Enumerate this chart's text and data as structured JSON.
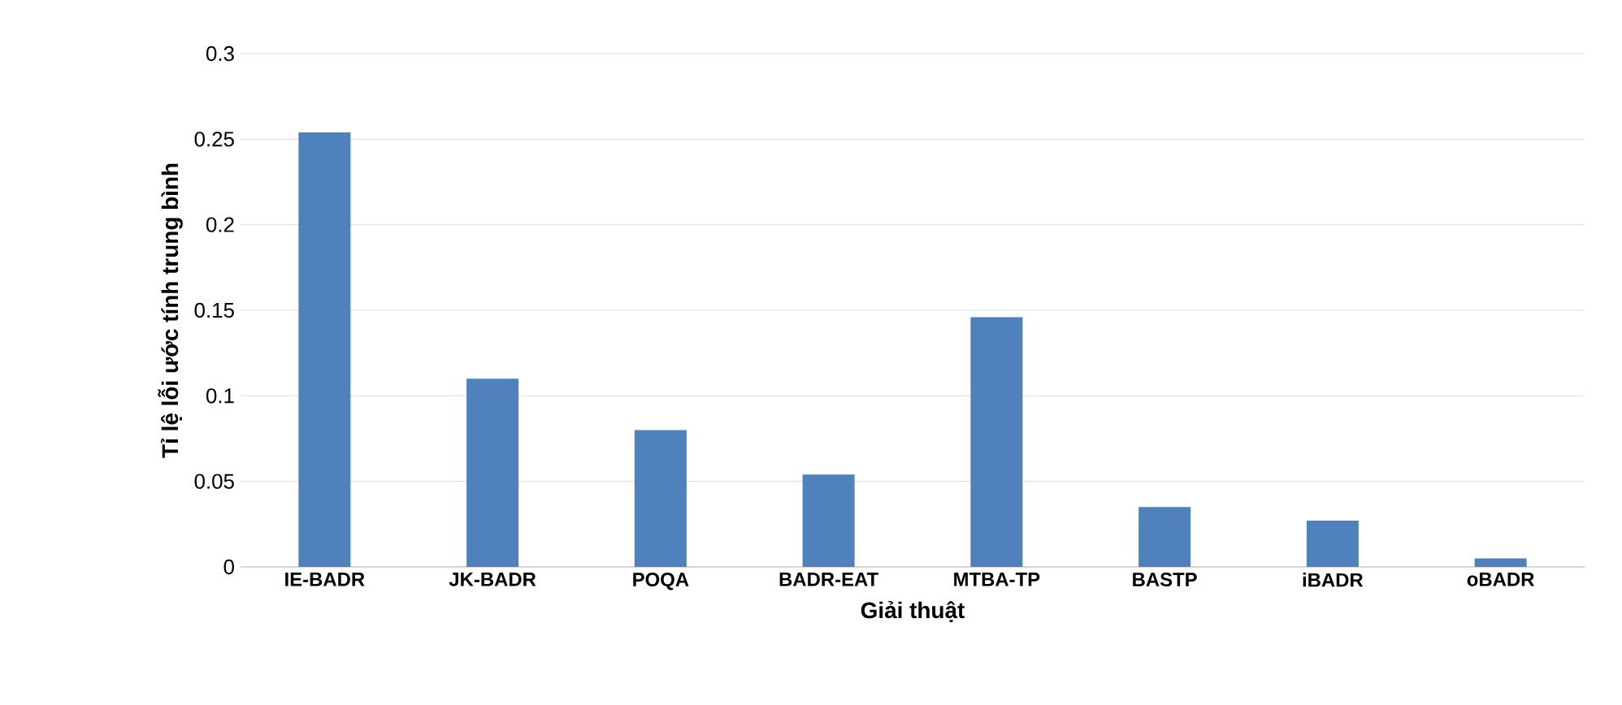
{
  "chart_data": {
    "type": "bar",
    "xlabel": "Giải thuật",
    "ylabel": "Tỉ lệ lỗi ước tính trung bình",
    "categories": [
      "IE-BADR",
      "JK-BADR",
      "POQA",
      "BADR-EAT",
      "MTBA-TP",
      "BASTP",
      "iBADR",
      "oBADR"
    ],
    "values": [
      0.254,
      0.11,
      0.08,
      0.054,
      0.146,
      0.035,
      0.027,
      0.005
    ],
    "color": "#4f81bd",
    "ylim": [
      0,
      0.3
    ],
    "yticks": [
      {
        "value": 0,
        "label": "0"
      },
      {
        "value": 0.05,
        "label": "0.05"
      },
      {
        "value": 0.1,
        "label": "0.1"
      },
      {
        "value": 0.15,
        "label": "0.15"
      },
      {
        "value": 0.2,
        "label": "0.2"
      },
      {
        "value": 0.25,
        "label": "0.25"
      },
      {
        "value": 0.3,
        "label": "0.3"
      }
    ],
    "grid": "y"
  }
}
